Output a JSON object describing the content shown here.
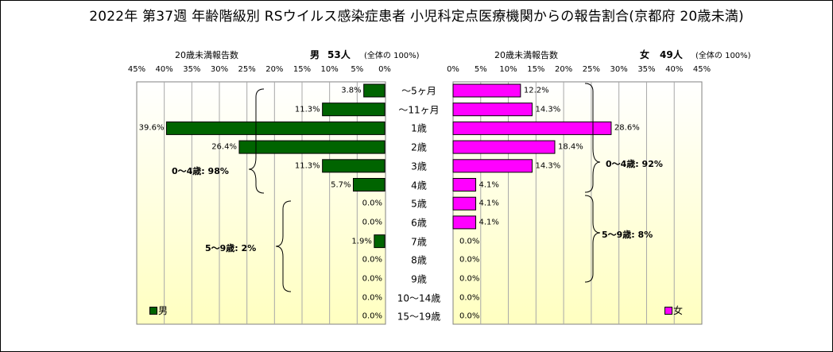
{
  "title": "2022年 第37週 年齢階級別 RSウイルス感染症患者 小児科定点医療機関からの報告割合(京都府 20歳未満)",
  "male_header": {
    "caption": "20歳未満報告数",
    "label": "男",
    "count": "53人",
    "note": "(全体の 100%)"
  },
  "female_header": {
    "caption": "20歳未満報告数",
    "label": "女",
    "count": "49人",
    "note": "(全体の 100%)"
  },
  "left_ticks": [
    "45%",
    "40%",
    "35%",
    "30%",
    "25%",
    "20%",
    "15%",
    "10%",
    "5%",
    "0%"
  ],
  "right_ticks": [
    "0%",
    "5%",
    "10%",
    "15%",
    "20%",
    "25%",
    "30%",
    "35%",
    "40%",
    "45%"
  ],
  "group_labels": {
    "male_0_4": "0～4歳: 98%",
    "male_5_9": "5～9歳: 2%",
    "female_0_4": "0～4歳: 92%",
    "female_5_9": "5～9歳: 8%"
  },
  "legend": {
    "male": "男",
    "female": "女"
  },
  "colors": {
    "male": "#006400",
    "female": "#ff00ff",
    "plot_top": "#ffffff",
    "plot_bottom": "#ffffc0",
    "grid": "#a8a8a8"
  },
  "chart_data": {
    "type": "bar",
    "orientation": "horizontal",
    "layout": "population-pyramid",
    "categories": [
      "～5ヶ月",
      "～11ヶ月",
      "1歳",
      "2歳",
      "3歳",
      "4歳",
      "5歳",
      "6歳",
      "7歳",
      "8歳",
      "9歳",
      "10～14歳",
      "15～19歳"
    ],
    "series": [
      {
        "name": "男",
        "values": [
          3.8,
          11.3,
          39.6,
          26.4,
          11.3,
          5.7,
          0.0,
          0.0,
          1.9,
          0.0,
          0.0,
          0.0,
          0.0
        ],
        "labels": [
          "3.8%",
          "11.3%",
          "39.6%",
          "26.4%",
          "11.3%",
          "5.7%",
          "0.0%",
          "0.0%",
          "1.9%",
          "0.0%",
          "0.0%",
          "0.0%",
          "0.0%"
        ]
      },
      {
        "name": "女",
        "values": [
          12.2,
          14.3,
          28.6,
          18.4,
          14.3,
          4.1,
          4.1,
          4.1,
          0.0,
          0.0,
          0.0,
          0.0,
          0.0
        ],
        "labels": [
          "12.2%",
          "14.3%",
          "28.6%",
          "18.4%",
          "14.3%",
          "4.1%",
          "4.1%",
          "4.1%",
          "0.0%",
          "0.0%",
          "0.0%",
          "0.0%",
          "0.0%"
        ]
      }
    ],
    "xlim": [
      0,
      45
    ],
    "grid": "vertical"
  }
}
